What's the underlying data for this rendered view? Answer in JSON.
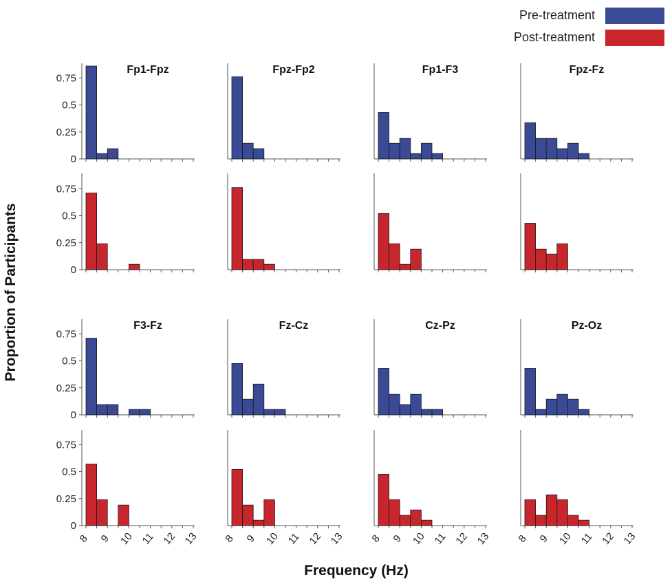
{
  "chart_data": {
    "type": "bar",
    "title": "",
    "xlabel": "Frequency (Hz)",
    "ylabel": "Proportion of Participants",
    "x_ticks": [
      "8",
      "9",
      "10",
      "11",
      "12",
      "13"
    ],
    "y_ticks": [
      "0",
      "0.25",
      "0.5",
      "0.75"
    ],
    "ylim": [
      0,
      0.9
    ],
    "xlim": [
      8,
      13
    ],
    "bin_edges": [
      8,
      8.5,
      9,
      9.5,
      10,
      10.5,
      11,
      11.5,
      12,
      12.5,
      13
    ],
    "legend": {
      "position": "top-right",
      "entries": [
        {
          "name": "Pre-treatment",
          "color": "#3b4a94"
        },
        {
          "name": "Post-treatment",
          "color": "#c8262d"
        }
      ]
    },
    "panels": [
      {
        "title": "Fp1-Fpz",
        "pre": [
          0.86,
          0.05,
          0.095,
          0,
          0,
          0,
          0,
          0,
          0,
          0
        ],
        "post": [
          0.71,
          0.24,
          0,
          0,
          0.05,
          0,
          0,
          0,
          0,
          0
        ]
      },
      {
        "title": "Fpz-Fp2",
        "pre": [
          0.76,
          0.145,
          0.095,
          0,
          0,
          0,
          0,
          0,
          0,
          0
        ],
        "post": [
          0.76,
          0.095,
          0.095,
          0.05,
          0,
          0,
          0,
          0,
          0,
          0
        ]
      },
      {
        "title": "Fp1-F3",
        "pre": [
          0.43,
          0.145,
          0.19,
          0.05,
          0.145,
          0.05,
          0,
          0,
          0,
          0
        ],
        "post": [
          0.52,
          0.24,
          0.05,
          0.19,
          0,
          0,
          0,
          0,
          0,
          0
        ]
      },
      {
        "title": "Fpz-Fz",
        "pre": [
          0.335,
          0.19,
          0.19,
          0.095,
          0.145,
          0.05,
          0,
          0,
          0,
          0
        ],
        "post": [
          0.43,
          0.19,
          0.145,
          0.24,
          0,
          0,
          0,
          0,
          0,
          0
        ]
      },
      {
        "title": "F3-Fz",
        "pre": [
          0.71,
          0.095,
          0.095,
          0,
          0.05,
          0.05,
          0,
          0,
          0,
          0
        ],
        "post": [
          0.57,
          0.24,
          0,
          0.19,
          0,
          0,
          0,
          0,
          0,
          0
        ]
      },
      {
        "title": "Fz-Cz",
        "pre": [
          0.475,
          0.145,
          0.285,
          0.05,
          0.05,
          0,
          0,
          0,
          0,
          0
        ],
        "post": [
          0.52,
          0.19,
          0.05,
          0.24,
          0,
          0,
          0,
          0,
          0,
          0
        ]
      },
      {
        "title": "Cz-Pz",
        "pre": [
          0.43,
          0.19,
          0.095,
          0.19,
          0.05,
          0.05,
          0,
          0,
          0,
          0
        ],
        "post": [
          0.475,
          0.24,
          0.095,
          0.145,
          0.05,
          0,
          0,
          0,
          0,
          0
        ]
      },
      {
        "title": "Pz-Oz",
        "pre": [
          0.43,
          0.05,
          0.145,
          0.19,
          0.145,
          0.05,
          0,
          0,
          0,
          0
        ],
        "post": [
          0.24,
          0.095,
          0.285,
          0.24,
          0.095,
          0.05,
          0,
          0,
          0,
          0
        ]
      }
    ]
  }
}
